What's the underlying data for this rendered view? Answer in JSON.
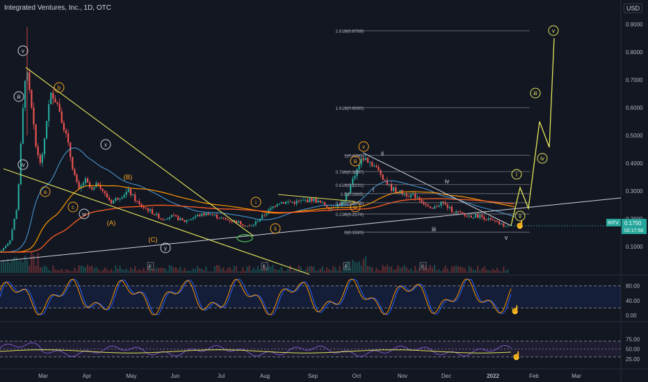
{
  "header": {
    "title": "Integrated Ventures, Inc., 1D, OTC",
    "currency": "USD"
  },
  "price_badge": {
    "symbol": "INTV",
    "price": "0.1750",
    "countdown": "02:17:56"
  },
  "colors": {
    "background": "#131722",
    "up": "#26a69a",
    "down": "#ef5350",
    "wave_yellow": "#e4e75a",
    "wave_orange": "#f5a623",
    "ma_red": "#ef5b24",
    "ma_blue": "#2962ff",
    "ma_orange": "#ff9800"
  },
  "chart_data": [
    {
      "type": "candlestick",
      "title": "Integrated Ventures, Inc., 1D, OTC",
      "xaxis_labels": [
        "Mar",
        "Apr",
        "May",
        "Jun",
        "Jul",
        "Aug",
        "Sep",
        "Oct",
        "Nov",
        "Dec",
        "2022",
        "Feb",
        "Mar"
      ],
      "yaxis_labels": [
        "0.1000",
        "0.2000",
        "0.3000",
        "0.4000",
        "0.5000",
        "0.6000",
        "0.7000",
        "0.8000",
        "0.9000"
      ],
      "ylim": [
        0.05,
        0.93
      ],
      "current_price": 0.175,
      "fib_levels": [
        {
          "label": "0(0.1520)",
          "value": 0.152
        },
        {
          "label": "0.236(0.2174)",
          "value": 0.2174
        },
        {
          "label": "0.382(0.2578)",
          "value": 0.2578
        },
        {
          "label": "0.5(0.2905)",
          "value": 0.2905
        },
        {
          "label": "0.618(0.3231)",
          "value": 0.3231
        },
        {
          "label": "0.786(0.3697)",
          "value": 0.3697
        },
        {
          "label": "1(0.4290)",
          "value": 0.429
        },
        {
          "label": "1.618(0.6000)",
          "value": 0.6
        },
        {
          "label": "2.618(0.8769)",
          "value": 0.8769
        }
      ],
      "wave_labels": [
        "v",
        "iii",
        "iv",
        "a",
        "b",
        "c",
        "w",
        "x",
        "y",
        "(A)",
        "(B)",
        "(C)",
        "i",
        "ii",
        "iii",
        "iv",
        "v",
        "i",
        "ii",
        "iii",
        "iv",
        "v",
        "i",
        "ii",
        "iii",
        "iv",
        "v"
      ],
      "event_markers": [
        "E",
        "E",
        "E",
        "E"
      ]
    },
    {
      "type": "line",
      "title": "",
      "yaxis_labels": [
        "80.00",
        "40.00",
        "0.00"
      ],
      "ylim": [
        -5,
        100
      ]
    },
    {
      "type": "line",
      "title": "",
      "yaxis_labels": [
        "75.00",
        "50.00",
        "25.00"
      ],
      "ylim": [
        18,
        92
      ]
    }
  ]
}
